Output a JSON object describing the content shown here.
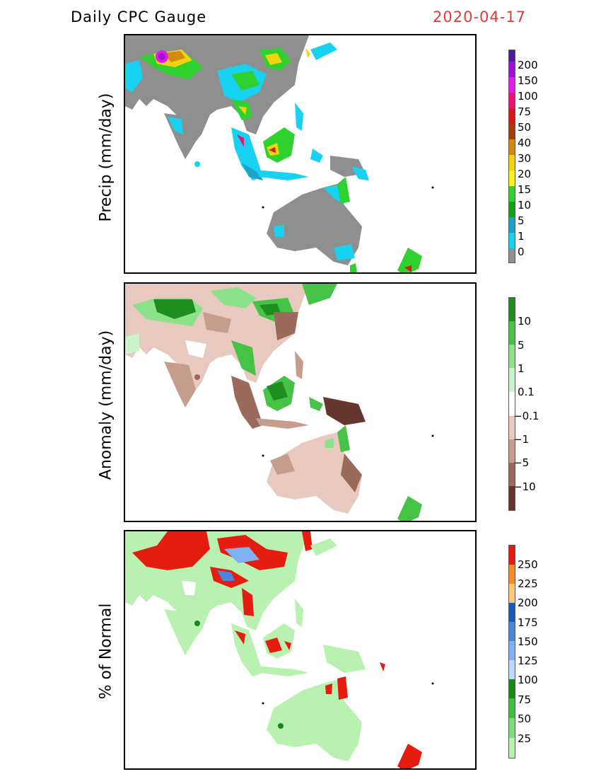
{
  "header": {
    "title": "Daily CPC Gauge",
    "date": "2020-04-17"
  },
  "panels": [
    {
      "ylabel": "Precip (mm/day)",
      "colorbar": {
        "labels": [
          "200",
          "150",
          "100",
          "75",
          "50",
          "40",
          "30",
          "20",
          "15",
          "10",
          "5",
          "1",
          "0"
        ],
        "colors": [
          "#4b1c9e",
          "#a10fd8",
          "#e51ce5",
          "#ee1273",
          "#d8181a",
          "#a53c0a",
          "#d28a0f",
          "#f2d30e",
          "#f5f51a",
          "#2fd12f",
          "#12a112",
          "#1aa4c8",
          "#18d2f2",
          "#8f8f8f"
        ]
      }
    },
    {
      "ylabel": "Anomaly (mm/day)",
      "colorbar": {
        "labels": [
          "10",
          "5",
          "1",
          "0.1",
          "−0.1",
          "−1",
          "−5",
          "−10"
        ],
        "colors": [
          "#1f8e1f",
          "#46c246",
          "#8be28b",
          "#c9f4c9",
          "#ffffff",
          "#e8c9bf",
          "#c69d8d",
          "#9a6a5c",
          "#64362e"
        ]
      }
    },
    {
      "ylabel": "% of Normal",
      "colorbar": {
        "labels": [
          "250",
          "225",
          "200",
          "175",
          "150",
          "125",
          "100",
          "75",
          "50",
          "25"
        ],
        "colors": [
          "#e51c10",
          "#f38d2c",
          "#fbc77c",
          "#1e5ab7",
          "#4b86dc",
          "#7fb1f0",
          "#bcd9fb",
          "#158a15",
          "#3cc03c",
          "#7edc7e",
          "#b9f2b0"
        ]
      }
    }
  ]
}
